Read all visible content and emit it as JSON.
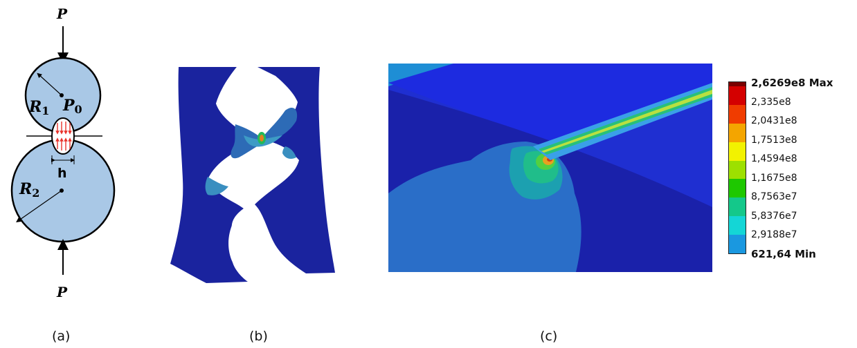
{
  "panel_a": {
    "top_force": "P",
    "bottom_force": "P",
    "radius1": "R",
    "radius1_sub": "1",
    "pressure": "P",
    "pressure_sub": "0",
    "width": "h",
    "radius2": "R",
    "radius2_sub": "2",
    "caption": "(a)",
    "colors": {
      "disk": "#a9c8e6",
      "pressure_arrows": "#e8332b"
    }
  },
  "panel_b": {
    "caption": "(b)",
    "colors": {
      "body": "#1a239e",
      "contour": "#2d6bb6"
    }
  },
  "panel_c": {
    "caption": "(c)",
    "legend": [
      {
        "label": "2,6269e8 Max",
        "color": "#d40000",
        "bold": true
      },
      {
        "label": "2,335e8",
        "color": "#f03c00"
      },
      {
        "label": "2,0431e8",
        "color": "#f4a500"
      },
      {
        "label": "1,7513e8",
        "color": "#f2f200"
      },
      {
        "label": "1,4594e8",
        "color": "#9de000"
      },
      {
        "label": "1,1675e8",
        "color": "#1ec800"
      },
      {
        "label": "8,7563e7",
        "color": "#14c88a"
      },
      {
        "label": "5,8376e7",
        "color": "#14d6d6"
      },
      {
        "label": "2,9188e7",
        "color": "#1a98e0"
      },
      {
        "label": "621,64 Min",
        "color": "#0a0ae6",
        "bold": true
      }
    ]
  }
}
